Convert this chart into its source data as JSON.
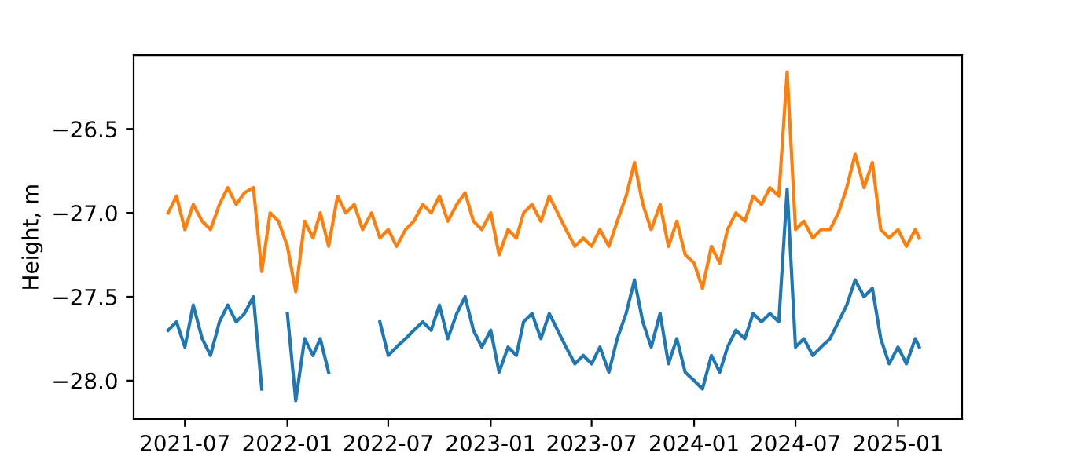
{
  "chart_data": {
    "type": "line",
    "ylabel": "Height, m",
    "x": [
      "2021-06-01",
      "2021-06-16",
      "2021-07-01",
      "2021-07-16",
      "2021-08-01",
      "2021-08-16",
      "2021-09-01",
      "2021-09-16",
      "2021-10-01",
      "2021-10-16",
      "2021-11-01",
      "2021-11-16",
      "2021-12-01",
      "2021-12-16",
      "2022-01-01",
      "2022-01-16",
      "2022-02-01",
      "2022-02-16",
      "2022-03-01",
      "2022-03-16",
      "2022-04-01",
      "2022-04-16",
      "2022-05-01",
      "2022-05-16",
      "2022-06-01",
      "2022-06-16",
      "2022-07-01",
      "2022-07-16",
      "2022-08-01",
      "2022-08-16",
      "2022-09-01",
      "2022-09-16",
      "2022-10-01",
      "2022-10-16",
      "2022-11-01",
      "2022-11-16",
      "2022-12-01",
      "2022-12-16",
      "2023-01-01",
      "2023-01-16",
      "2023-02-01",
      "2023-02-16",
      "2023-03-01",
      "2023-03-16",
      "2023-04-01",
      "2023-04-16",
      "2023-05-01",
      "2023-05-16",
      "2023-06-01",
      "2023-06-16",
      "2023-07-01",
      "2023-07-16",
      "2023-08-01",
      "2023-08-16",
      "2023-09-01",
      "2023-09-16",
      "2023-10-01",
      "2023-10-16",
      "2023-11-01",
      "2023-11-16",
      "2023-12-01",
      "2023-12-16",
      "2024-01-01",
      "2024-01-16",
      "2024-02-01",
      "2024-02-16",
      "2024-03-01",
      "2024-03-16",
      "2024-04-01",
      "2024-04-16",
      "2024-05-01",
      "2024-05-16",
      "2024-06-01",
      "2024-06-16",
      "2024-07-01",
      "2024-07-16",
      "2024-08-01",
      "2024-08-16",
      "2024-09-01",
      "2024-09-16",
      "2024-10-01",
      "2024-10-16",
      "2024-11-01",
      "2024-11-16",
      "2024-12-01",
      "2024-12-16",
      "2025-01-01",
      "2025-01-16",
      "2025-02-01",
      "2025-02-08"
    ],
    "series": [
      {
        "color": "#1f77b4",
        "values": [
          -27.7,
          -27.65,
          -27.8,
          -27.55,
          -27.75,
          -27.85,
          -27.65,
          -27.55,
          -27.65,
          -27.6,
          -27.5,
          -28.05,
          null,
          null,
          -27.6,
          -28.12,
          -27.75,
          -27.85,
          -27.75,
          -27.95,
          null,
          null,
          null,
          null,
          null,
          -27.65,
          -27.85,
          -27.8,
          -27.75,
          -27.7,
          -27.65,
          -27.7,
          -27.55,
          -27.75,
          -27.6,
          -27.5,
          -27.7,
          -27.8,
          -27.7,
          -27.95,
          -27.8,
          -27.85,
          -27.65,
          -27.6,
          -27.75,
          -27.6,
          -27.7,
          -27.8,
          -27.9,
          -27.85,
          -27.9,
          -27.8,
          -27.95,
          -27.75,
          -27.6,
          -27.4,
          -27.65,
          -27.8,
          -27.6,
          -27.9,
          -27.75,
          -27.95,
          -28.0,
          -28.05,
          -27.85,
          -27.95,
          -27.8,
          -27.7,
          -27.75,
          -27.6,
          -27.65,
          -27.6,
          -27.65,
          -26.86,
          -27.8,
          -27.75,
          -27.85,
          -27.8,
          -27.75,
          -27.65,
          -27.55,
          -27.4,
          -27.5,
          -27.45,
          -27.75,
          -27.9,
          -27.8,
          -27.9,
          -27.75,
          -27.8
        ]
      },
      {
        "color": "#ff7f0e",
        "values": [
          -27.0,
          -26.9,
          -27.1,
          -26.95,
          -27.05,
          -27.1,
          -26.95,
          -26.85,
          -26.95,
          -26.88,
          -26.85,
          -27.35,
          -27.0,
          -27.05,
          -27.2,
          -27.47,
          -27.05,
          -27.15,
          -27.0,
          -27.2,
          -26.9,
          -27.0,
          -26.95,
          -27.1,
          -27.0,
          -27.15,
          -27.1,
          -27.2,
          -27.1,
          -27.05,
          -26.95,
          -27.0,
          -26.9,
          -27.05,
          -26.95,
          -26.88,
          -27.05,
          -27.1,
          -27.0,
          -27.25,
          -27.1,
          -27.15,
          -27.0,
          -26.95,
          -27.05,
          -26.9,
          -27.0,
          -27.1,
          -27.2,
          -27.15,
          -27.2,
          -27.1,
          -27.2,
          -27.05,
          -26.9,
          -26.7,
          -26.95,
          -27.1,
          -26.95,
          -27.2,
          -27.05,
          -27.25,
          -27.3,
          -27.45,
          -27.2,
          -27.3,
          -27.1,
          -27.0,
          -27.05,
          -26.9,
          -26.95,
          -26.85,
          -26.9,
          -26.16,
          -27.1,
          -27.05,
          -27.15,
          -27.1,
          -27.1,
          -27.0,
          -26.85,
          -26.65,
          -26.85,
          -26.7,
          -27.1,
          -27.15,
          -27.1,
          -27.2,
          -27.1,
          -27.15
        ]
      }
    ],
    "xlim": [
      "2021-03-31",
      "2025-04-26"
    ],
    "xticks": [
      "2021-07",
      "2022-01",
      "2022-07",
      "2023-01",
      "2023-07",
      "2024-01",
      "2024-07",
      "2025-01"
    ],
    "ylim": [
      -28.23,
      -26.06
    ],
    "yticks": [
      {
        "value": -28.0,
        "label": "−28.0"
      },
      {
        "value": -27.5,
        "label": "−27.5"
      },
      {
        "value": -27.0,
        "label": "−27.0"
      },
      {
        "value": -26.5,
        "label": "−26.5"
      }
    ],
    "grid": false
  }
}
